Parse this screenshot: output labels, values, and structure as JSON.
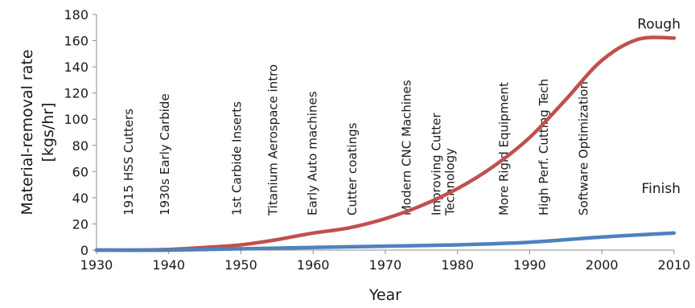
{
  "chart_data": {
    "type": "line",
    "xlabel": "Year",
    "ylabel_lines": [
      "Material-removal rate",
      "[kgs/hr]"
    ],
    "xlim": [
      1930,
      2010
    ],
    "ylim": [
      0,
      180
    ],
    "xticks": [
      1930,
      1940,
      1950,
      1960,
      1970,
      1980,
      1990,
      2000,
      2010
    ],
    "yticks": [
      0,
      20,
      40,
      60,
      80,
      100,
      120,
      140,
      160,
      180
    ],
    "grid": false,
    "series": [
      {
        "name": "Rough",
        "color": "#c0504d",
        "x": [
          1930,
          1935,
          1940,
          1945,
          1950,
          1955,
          1960,
          1965,
          1970,
          1975,
          1980,
          1985,
          1990,
          1995,
          2000,
          2005,
          2010
        ],
        "y": [
          0,
          0,
          0.5,
          2,
          4,
          8,
          13,
          17,
          24,
          34,
          47,
          64,
          86,
          115,
          145,
          161,
          162
        ]
      },
      {
        "name": "Finish",
        "color": "#4f81bd",
        "x": [
          1930,
          1940,
          1950,
          1960,
          1970,
          1980,
          1990,
          2000,
          2010
        ],
        "y": [
          0,
          0,
          1,
          2,
          3,
          4,
          6,
          10,
          13
        ]
      }
    ],
    "annotations": [
      {
        "text": "1915 HSS Cutters",
        "x": 1935
      },
      {
        "text": "1930s Early Carbide",
        "x": 1940
      },
      {
        "text": "1st Carbide Inserts",
        "x": 1950
      },
      {
        "text": "Titanium Aerospace intro",
        "x": 1955
      },
      {
        "text": "Early Auto machines",
        "x": 1960.5
      },
      {
        "text": "Cutter coatings",
        "x": 1966
      },
      {
        "text": "Modern CNC Machines",
        "x": 1973.5
      },
      {
        "text": "Improving Cutter",
        "text2": "Technology",
        "x": 1978.5
      },
      {
        "text": "More Rigid Equipment",
        "x": 1987
      },
      {
        "text": "High Perf. Cutting Tech",
        "x": 1992.5
      },
      {
        "text": "Software Optimization",
        "x": 1998
      }
    ]
  }
}
